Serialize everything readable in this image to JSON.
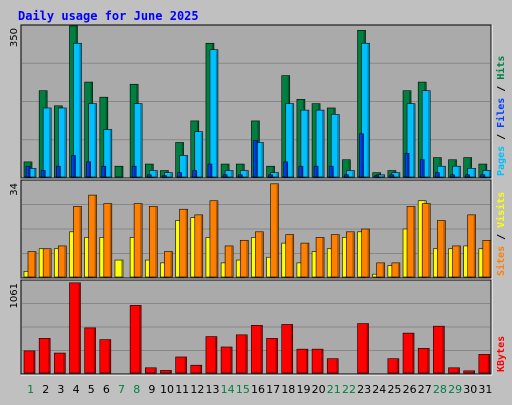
{
  "title": "Daily usage for June 2025",
  "colors": {
    "background": "#c0c0c0",
    "panel": "#aaaaaa",
    "grid": "#888888",
    "title": "#0000ff",
    "hits": "#008040",
    "files": "#00c0ff",
    "pages": "#0040ff",
    "visits": "#ffff00",
    "sites": "#ff8000",
    "kbytes": "#ff0000",
    "weekend_label": "#008040",
    "weekday_label": "#000000"
  },
  "days": [
    "1",
    "2",
    "3",
    "4",
    "5",
    "6",
    "7",
    "8",
    "9",
    "10",
    "11",
    "12",
    "13",
    "14",
    "15",
    "16",
    "17",
    "18",
    "19",
    "20",
    "21",
    "22",
    "23",
    "24",
    "25",
    "26",
    "27",
    "28",
    "29",
    "30",
    "31"
  ],
  "weekend_days": [
    1,
    7,
    8,
    14,
    15,
    21,
    22,
    28,
    29
  ],
  "chart_data": [
    {
      "type": "bar",
      "name": "hits-files-pages",
      "ymax_label": "350",
      "ylim": [
        0,
        350
      ],
      "legend": [
        {
          "name": "Pages",
          "color": "#00c0ff"
        },
        {
          "name": "Files",
          "color": "#0040ff"
        },
        {
          "name": "Hits",
          "color": "#008040"
        }
      ],
      "legend_separator": " / ",
      "series": [
        {
          "name": "Hits",
          "values": [
            35,
            200,
            165,
            350,
            220,
            185,
            25,
            215,
            30,
            15,
            80,
            130,
            310,
            30,
            30,
            130,
            25,
            235,
            180,
            170,
            160,
            40,
            340,
            10,
            15,
            200,
            220,
            45,
            40,
            45,
            30
          ]
        },
        {
          "name": "Files",
          "values": [
            20,
            160,
            160,
            310,
            170,
            110,
            0,
            170,
            15,
            10,
            50,
            105,
            295,
            15,
            15,
            80,
            10,
            170,
            155,
            155,
            145,
            15,
            310,
            5,
            10,
            170,
            200,
            25,
            25,
            20,
            15
          ]
        },
        {
          "name": "Pages",
          "values": [
            25,
            15,
            25,
            50,
            35,
            25,
            0,
            25,
            5,
            3,
            10,
            15,
            30,
            5,
            5,
            85,
            5,
            35,
            25,
            25,
            25,
            5,
            100,
            3,
            5,
            55,
            40,
            10,
            5,
            5,
            5
          ]
        }
      ]
    },
    {
      "type": "bar",
      "name": "sites-visits",
      "ymax_label": "34",
      "ylim": [
        0,
        34
      ],
      "legend": [
        {
          "name": "Sites",
          "color": "#ff8000"
        },
        {
          "name": "Visits",
          "color": "#ffff00"
        }
      ],
      "legend_separator": " / ",
      "series": [
        {
          "name": "Visits",
          "values": [
            2,
            10,
            10,
            16,
            14,
            14,
            6,
            14,
            6,
            5,
            20,
            21,
            14,
            5,
            6,
            14,
            7,
            12,
            5,
            9,
            10,
            14,
            16,
            1,
            4,
            17,
            27,
            10,
            10,
            11,
            10
          ]
        },
        {
          "name": "Sites",
          "values": [
            9,
            10,
            11,
            25,
            29,
            26,
            0,
            26,
            25,
            9,
            24,
            22,
            27,
            11,
            13,
            16,
            33,
            15,
            12,
            14,
            15,
            16,
            17,
            5,
            5,
            25,
            26,
            20,
            11,
            22,
            13
          ]
        }
      ]
    },
    {
      "type": "bar",
      "name": "kbytes",
      "ymax_label": "1061",
      "ylim": [
        0,
        1061
      ],
      "legend": [
        {
          "name": "KBytes",
          "color": "#ff0000"
        }
      ],
      "series": [
        {
          "name": "KBytes",
          "values": [
            255,
            400,
            230,
            1040,
            520,
            385,
            0,
            780,
            60,
            30,
            185,
            90,
            420,
            300,
            440,
            550,
            400,
            560,
            275,
            275,
            165,
            0,
            570,
            0,
            165,
            460,
            285,
            540,
            60,
            25,
            215
          ]
        }
      ]
    }
  ]
}
